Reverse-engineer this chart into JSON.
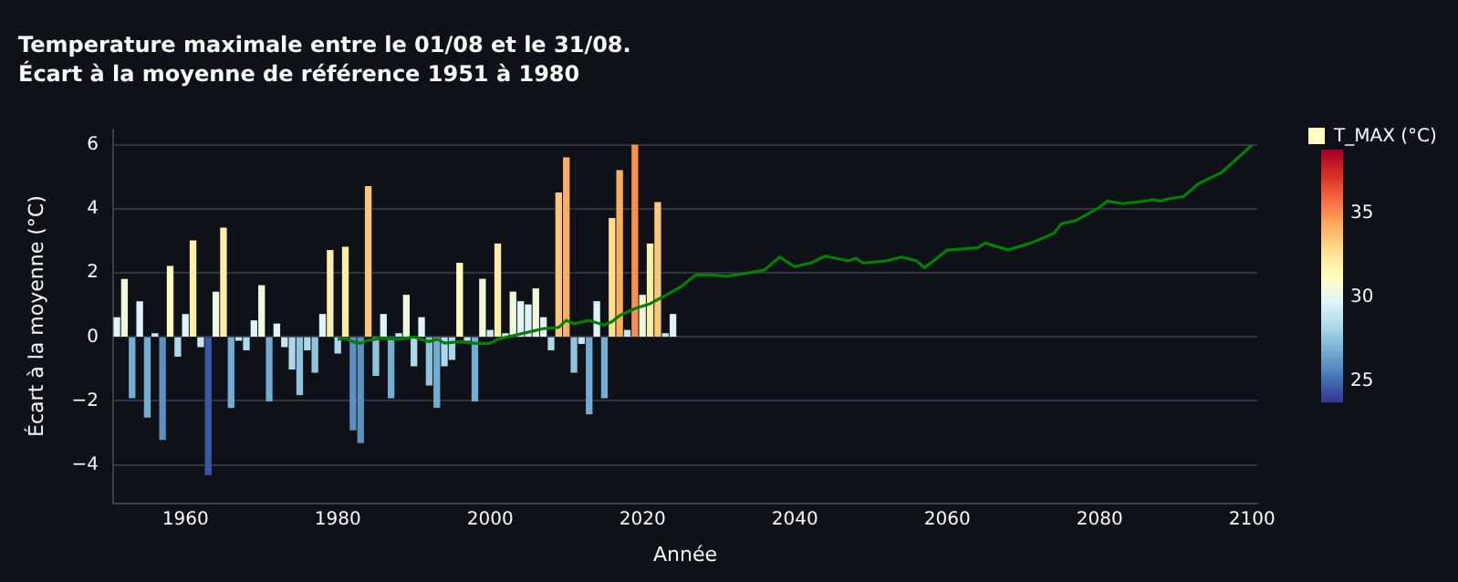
{
  "chart_data": {
    "type": "bar",
    "title": "Temperature maximale entre le 01/08 et le 31/08.",
    "subtitle": "Écart à la moyenne de référence 1951 à 1980",
    "xlabel": "Année",
    "ylabel": "Écart à la moyenne (°C)",
    "legend": "top right",
    "grid": "y",
    "xlim": [
      1950.5,
      2100.7
    ],
    "xticks": [
      1960,
      1980,
      2000,
      2020,
      2040,
      2060,
      2080,
      2100
    ],
    "ylim": [
      -5.2,
      6.5
    ],
    "yticks": [
      -4,
      -2,
      0,
      2,
      4,
      6
    ],
    "clim": [
      23.8,
      38.8
    ],
    "cticks": [
      25,
      30,
      35
    ],
    "series": [
      {
        "name": "T_MAX (°C)",
        "x": [
          1951,
          1952,
          1953,
          1954,
          1955,
          1956,
          1957,
          1958,
          1959,
          1960,
          1961,
          1962,
          1963,
          1964,
          1965,
          1966,
          1967,
          1968,
          1969,
          1970,
          1971,
          1972,
          1973,
          1974,
          1975,
          1976,
          1977,
          1978,
          1979,
          1980,
          1981,
          1982,
          1983,
          1984,
          1985,
          1986,
          1987,
          1988,
          1989,
          1990,
          1991,
          1992,
          1993,
          1994,
          1995,
          1996,
          1997,
          1998,
          1999,
          2000,
          2001,
          2002,
          2003,
          2004,
          2005,
          2006,
          2007,
          2008,
          2009,
          2010,
          2011,
          2012,
          2013,
          2014,
          2015,
          2016,
          2017,
          2018,
          2019,
          2020,
          2021,
          2022,
          2023,
          2024
        ],
        "values": [
          0.6,
          1.8,
          -1.9,
          1.1,
          -2.5,
          0.1,
          -3.2,
          2.2,
          -0.6,
          0.7,
          3.0,
          -0.3,
          -4.3,
          1.4,
          3.4,
          -2.2,
          -0.1,
          -0.4,
          0.5,
          1.6,
          -2.0,
          0.4,
          -0.3,
          -1.0,
          -1.8,
          -0.4,
          -1.1,
          0.7,
          2.7,
          -0.5,
          2.8,
          -2.9,
          -3.3,
          4.7,
          -1.2,
          0.7,
          -1.9,
          0.1,
          1.3,
          -0.9,
          0.6,
          -1.5,
          -2.2,
          -0.9,
          -0.7,
          2.3,
          -0.1,
          -2.0,
          1.8,
          0.2,
          2.9,
          0.1,
          1.4,
          1.1,
          1.0,
          1.5,
          0.6,
          -0.4,
          4.5,
          5.6,
          -1.1,
          -0.2,
          -2.4,
          1.1,
          -1.9,
          3.7,
          5.2,
          0.2,
          6.0,
          1.3,
          2.9,
          4.2,
          0.1,
          0.7
        ],
        "colors": [
          "#e0f3f8",
          "#f0f9dc",
          "#74add1",
          "#e0f3f8",
          "#74add1",
          "#c6e6f0",
          "#5d91c2",
          "#ffffbf",
          "#abd9e9",
          "#e0f3f8",
          "#ffeea8",
          "#c6e6f0",
          "#3b56a4",
          "#f0f9dc",
          "#ffeea8",
          "#74add1",
          "#c6e6f0",
          "#abd9e9",
          "#e0f3f8",
          "#f0f9dc",
          "#74add1",
          "#e0f3f8",
          "#c6e6f0",
          "#abd9e9",
          "#90c3dd",
          "#abd9e9",
          "#90c3dd",
          "#e0f3f8",
          "#ffeea8",
          "#abd9e9",
          "#ffeea8",
          "#5d91c2",
          "#5d91c2",
          "#fec778",
          "#90c3dd",
          "#e0f3f8",
          "#74add1",
          "#c6e6f0",
          "#f0f9dc",
          "#abd9e9",
          "#e0f3f8",
          "#90c3dd",
          "#74add1",
          "#abd9e9",
          "#abd9e9",
          "#ffffbf",
          "#c6e6f0",
          "#74add1",
          "#f0f9dc",
          "#c6e6f0",
          "#ffeea8",
          "#c6e6f0",
          "#f0f9dc",
          "#e0f3f8",
          "#e0f3f8",
          "#f0f9dc",
          "#e0f3f8",
          "#abd9e9",
          "#fec778",
          "#fdae61",
          "#90c3dd",
          "#c6e6f0",
          "#74add1",
          "#e0f3f8",
          "#74add1",
          "#fee090",
          "#fdae61",
          "#c6e6f0",
          "#f98e52",
          "#f0f9dc",
          "#ffeea8",
          "#fec778",
          "#c6e6f0",
          "#e0f3f8"
        ]
      },
      {
        "type": "line",
        "color": "#008000",
        "x": [
          1980,
          1981,
          1982,
          1983,
          1984,
          1986,
          1988,
          1990,
          1992,
          1993,
          1994,
          1996,
          1998,
          2000,
          2001,
          2003,
          2005,
          2007,
          2009,
          2010,
          2011,
          2013,
          2015,
          2016,
          2017,
          2019,
          2021,
          2023,
          2025,
          2026,
          2027,
          2029,
          2031,
          2033,
          2036,
          2038,
          2040,
          2042,
          2044,
          2047,
          2048,
          2049,
          2052,
          2054,
          2056,
          2057,
          2060,
          2064,
          2065,
          2068,
          2071,
          2074,
          2075,
          2077,
          2080,
          2081,
          2083,
          2086,
          2087,
          2088,
          2089,
          2091,
          2093,
          2096,
          2100
        ],
        "values": [
          -0.07,
          -0.04,
          -0.15,
          -0.2,
          -0.1,
          -0.04,
          -0.07,
          0.0,
          -0.15,
          -0.07,
          -0.19,
          -0.15,
          -0.2,
          -0.2,
          -0.07,
          0.04,
          0.15,
          0.26,
          0.3,
          0.52,
          0.41,
          0.52,
          0.37,
          0.48,
          0.67,
          0.89,
          1.04,
          1.3,
          1.56,
          1.75,
          1.94,
          1.94,
          1.9,
          1.97,
          2.09,
          2.5,
          2.2,
          2.31,
          2.53,
          2.38,
          2.46,
          2.31,
          2.38,
          2.5,
          2.38,
          2.16,
          2.72,
          2.79,
          2.94,
          2.72,
          2.94,
          3.24,
          3.54,
          3.65,
          4.06,
          4.25,
          4.17,
          4.25,
          4.3,
          4.25,
          4.32,
          4.39,
          4.8,
          5.14,
          6.0
        ]
      }
    ]
  }
}
